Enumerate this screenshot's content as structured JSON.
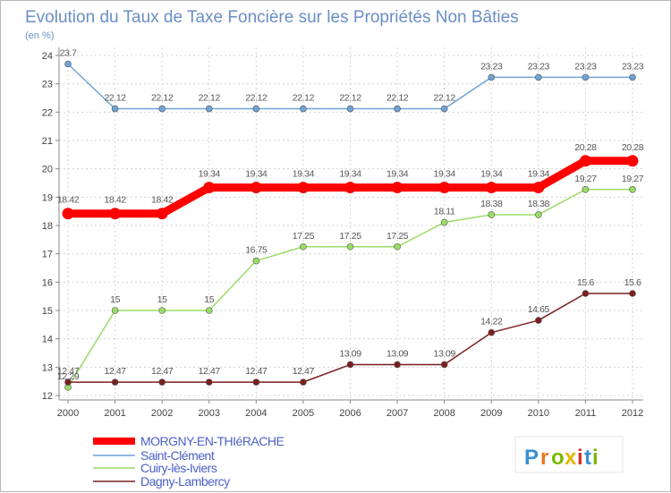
{
  "chart_data": {
    "type": "line",
    "title": "Evolution du Taux de Taxe Foncière sur les Propriétés Non Bâties",
    "unit_label": "(en %)",
    "x": [
      "2000",
      "2001",
      "2002",
      "2003",
      "2004",
      "2005",
      "2006",
      "2007",
      "2008",
      "2009",
      "2010",
      "2011",
      "2012"
    ],
    "ylim": [
      12,
      24
    ],
    "yticks": [
      12,
      13,
      14,
      15,
      16,
      17,
      18,
      19,
      20,
      21,
      22,
      23,
      24
    ],
    "grid": true,
    "series": [
      {
        "name": "MORGNY-EN-THIéRACHE",
        "color": "#ff0000",
        "values": [
          18.42,
          18.42,
          18.42,
          19.34,
          19.34,
          19.34,
          19.34,
          19.34,
          19.34,
          19.34,
          19.34,
          20.28,
          20.28
        ],
        "labels": [
          "18.42",
          "18.42",
          "18.42",
          "19.34",
          "19.34",
          "19.34",
          "19.34",
          "19.34",
          "19.34",
          "19.34",
          "19.34",
          "20.28",
          "20.28"
        ]
      },
      {
        "name": "Saint-Clément",
        "color": "#6fa3d6",
        "values": [
          23.7,
          22.12,
          22.12,
          22.12,
          22.12,
          22.12,
          22.12,
          22.12,
          22.12,
          23.23,
          23.23,
          23.23,
          23.23
        ],
        "labels": [
          "23.7",
          "22.12",
          "22.12",
          "22.12",
          "22.12",
          "22.12",
          "22.12",
          "22.12",
          "22.12",
          "23.23",
          "23.23",
          "23.23",
          "23.23"
        ]
      },
      {
        "name": "Cuiry-lès-Iviers",
        "color": "#99dd66",
        "values": [
          12.29,
          15,
          15,
          15,
          16.75,
          17.25,
          17.25,
          17.25,
          18.11,
          18.38,
          18.38,
          19.27,
          19.27
        ],
        "labels": [
          "12.29",
          "15",
          "15",
          "15",
          "16.75",
          "17.25",
          "17.25",
          "17.25",
          "18.11",
          "18.38",
          "18.38",
          "19.27",
          "19.27"
        ]
      },
      {
        "name": "Dagny-Lambercy",
        "color": "#7a1f1f",
        "values": [
          12.47,
          12.47,
          12.47,
          12.47,
          12.47,
          12.47,
          13.09,
          13.09,
          13.09,
          14.22,
          14.65,
          15.6,
          15.6
        ],
        "labels": [
          "12.47",
          "12.47",
          "12.47",
          "12.47",
          "12.47",
          "12.47",
          "13.09",
          "13.09",
          "13.09",
          "14.22",
          "14.65",
          "15.6",
          "15.6"
        ]
      }
    ],
    "legend_position": "bottom-left"
  },
  "branding": {
    "logo_text": "Proxiti",
    "logo_letters": [
      "P",
      "r",
      "o",
      "x",
      "i",
      "t",
      "i"
    ],
    "logo_colors": [
      "#3a8fd0",
      "#e87722",
      "#7ab800",
      "#e8b400",
      "#d62d2d",
      "#3a8fd0",
      "#7ab800"
    ]
  }
}
